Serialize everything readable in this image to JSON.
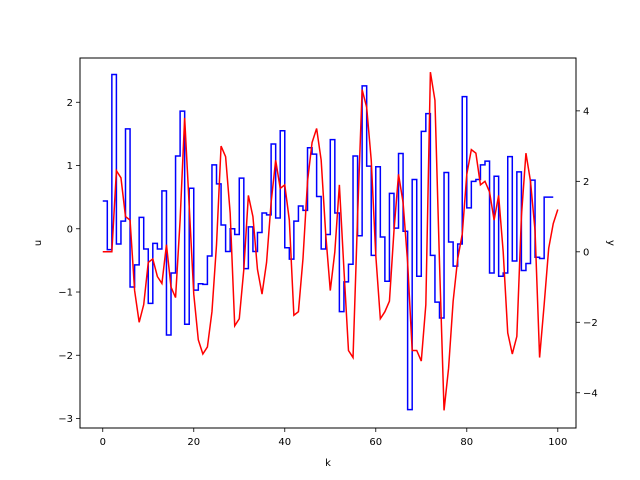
{
  "chart_data": {
    "type": "line",
    "xlabel": "k",
    "ylabel_left": "u",
    "ylabel_right": "y",
    "xlim": [
      -5,
      104
    ],
    "ylim_left": [
      -3.15,
      2.7
    ],
    "ylim_right": [
      -5.0,
      5.5
    ],
    "x_ticks": [
      0,
      20,
      40,
      60,
      80,
      100
    ],
    "y_left_ticks": [
      -3,
      -2,
      -1,
      0,
      1,
      2
    ],
    "y_right_ticks": [
      -4,
      -2,
      0,
      2,
      4
    ],
    "grid": false,
    "series": [
      {
        "axis": "left",
        "style": "step-post",
        "color": "#0000ff",
        "x_start": 0,
        "values": [
          0.44,
          -0.33,
          2.44,
          -0.24,
          0.12,
          1.58,
          -0.92,
          -0.57,
          0.18,
          -0.32,
          -1.18,
          -0.23,
          -0.32,
          0.6,
          -1.68,
          -0.7,
          1.15,
          1.86,
          -1.51,
          0.64,
          -0.97,
          -0.87,
          -0.88,
          -0.43,
          1.01,
          0.71,
          0.06,
          -0.36,
          0.0,
          -0.09,
          0.8,
          -0.63,
          0.03,
          -0.36,
          -0.06,
          0.25,
          0.22,
          1.34,
          0.17,
          1.55,
          -0.3,
          -0.48,
          0.12,
          0.36,
          0.29,
          1.28,
          1.18,
          0.51,
          -0.32,
          -0.09,
          1.41,
          0.25,
          -1.31,
          -0.84,
          -0.56,
          1.15,
          -0.11,
          2.26,
          0.99,
          -0.42,
          0.98,
          -0.13,
          -0.83,
          0.56,
          0.01,
          1.19,
          -0.04,
          -2.86,
          0.78,
          -0.75,
          1.54,
          1.82,
          -0.42,
          -1.16,
          -1.41,
          0.89,
          -0.21,
          -0.59,
          -0.24,
          2.09,
          0.33,
          0.75,
          0.78,
          1.01,
          1.07,
          -0.7,
          0.83,
          -0.75,
          -0.7,
          1.14,
          -0.51,
          0.9,
          -0.66,
          -0.55,
          0.77,
          -0.45,
          -0.47,
          0.5,
          0.5,
          0.5
        ]
      },
      {
        "axis": "right",
        "style": "line",
        "color": "#ff0000",
        "x_start": 0,
        "values": [
          0.0,
          0.0,
          0.0,
          2.3,
          2.1,
          1.0,
          0.9,
          -1.1,
          -2.0,
          -1.5,
          -0.3,
          -0.2,
          -0.7,
          -0.9,
          0.2,
          -1.0,
          -1.3,
          0.9,
          3.8,
          1.3,
          -1.2,
          -2.5,
          -2.9,
          -2.7,
          -1.7,
          0.2,
          3.0,
          2.7,
          1.1,
          -2.1,
          -1.9,
          -0.5,
          1.6,
          1.0,
          -0.5,
          -1.2,
          -0.3,
          1.4,
          2.6,
          1.8,
          1.9,
          0.9,
          -1.8,
          -1.7,
          -0.2,
          2.0,
          3.1,
          3.5,
          2.6,
          0.5,
          -1.1,
          0.0,
          1.9,
          -0.5,
          -2.8,
          -3.0,
          1.0,
          4.6,
          4.1,
          2.6,
          -0.1,
          -1.9,
          -1.7,
          -1.4,
          0.6,
          2.2,
          1.4,
          -0.3,
          -2.8,
          -2.8,
          -3.1,
          -1.5,
          5.1,
          4.3,
          -0.3,
          -4.5,
          -3.3,
          -1.4,
          -0.2,
          0.5,
          2.2,
          2.9,
          2.8,
          1.9,
          2.0,
          1.7,
          0.9,
          1.6,
          0.0,
          -2.3,
          -2.9,
          -2.4,
          1.0,
          2.8,
          2.0,
          0.6,
          -3.0,
          -1.5,
          0.1,
          0.8,
          1.2
        ]
      }
    ]
  }
}
